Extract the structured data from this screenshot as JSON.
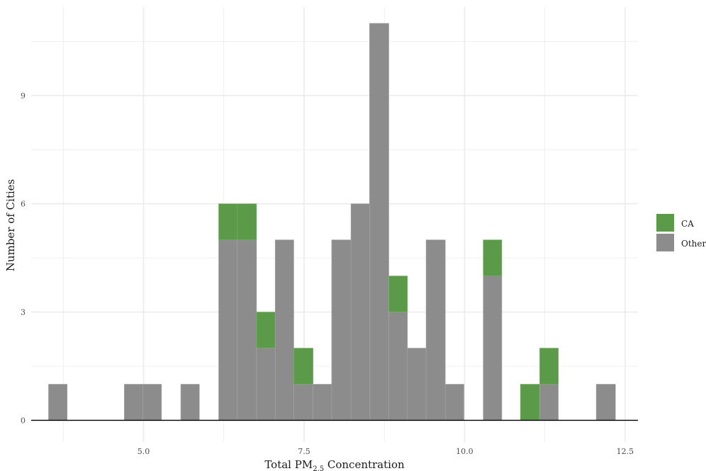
{
  "chart_data": {
    "type": "bar",
    "subtype": "stacked-histogram",
    "title": "",
    "xlabel": {
      "main": "Total PM",
      "sub": "2.5",
      "rest": " Concentration"
    },
    "ylabel": "Number of Cities",
    "xlim": [
      3.25,
      12.7
    ],
    "ylim": [
      -0.6,
      11.45
    ],
    "x_ticks": [
      5.0,
      7.5,
      10.0,
      12.5
    ],
    "x_tick_labels": [
      "5.0",
      "7.5",
      "10.0",
      "12.5"
    ],
    "y_ticks": [
      0,
      3,
      6,
      9
    ],
    "y_tick_labels": [
      "0",
      "3",
      "6",
      "9"
    ],
    "grid": true,
    "legend": {
      "position": "right",
      "items": [
        "CA",
        "Other"
      ]
    },
    "colors": {
      "CA": "#5b9a48",
      "Other": "#8c8c8c",
      "grid": "#ebebeb",
      "baseline": "#000000"
    },
    "bins": [
      {
        "x0": 3.52,
        "x1": 3.81,
        "Other": 1,
        "CA": 0
      },
      {
        "x0": 4.7,
        "x1": 4.99,
        "Other": 1,
        "CA": 0
      },
      {
        "x0": 4.99,
        "x1": 5.28,
        "Other": 1,
        "CA": 0
      },
      {
        "x0": 5.58,
        "x1": 5.87,
        "Other": 1,
        "CA": 0
      },
      {
        "x0": 6.17,
        "x1": 6.46,
        "Other": 5,
        "CA": 1
      },
      {
        "x0": 6.46,
        "x1": 6.76,
        "Other": 5,
        "CA": 1
      },
      {
        "x0": 6.76,
        "x1": 7.05,
        "Other": 2,
        "CA": 1
      },
      {
        "x0": 7.05,
        "x1": 7.34,
        "Other": 5,
        "CA": 0
      },
      {
        "x0": 7.34,
        "x1": 7.64,
        "Other": 1,
        "CA": 1
      },
      {
        "x0": 7.64,
        "x1": 7.93,
        "Other": 1,
        "CA": 0
      },
      {
        "x0": 7.93,
        "x1": 8.23,
        "Other": 5,
        "CA": 0
      },
      {
        "x0": 8.23,
        "x1": 8.52,
        "Other": 6,
        "CA": 0
      },
      {
        "x0": 8.52,
        "x1": 8.82,
        "Other": 11,
        "CA": 0
      },
      {
        "x0": 8.82,
        "x1": 9.11,
        "Other": 3,
        "CA": 1
      },
      {
        "x0": 9.11,
        "x1": 9.4,
        "Other": 2,
        "CA": 0
      },
      {
        "x0": 9.4,
        "x1": 9.7,
        "Other": 5,
        "CA": 0
      },
      {
        "x0": 9.7,
        "x1": 9.99,
        "Other": 1,
        "CA": 0
      },
      {
        "x0": 10.29,
        "x1": 10.58,
        "Other": 4,
        "CA": 1
      },
      {
        "x0": 10.87,
        "x1": 11.17,
        "Other": 0,
        "CA": 1
      },
      {
        "x0": 11.17,
        "x1": 11.46,
        "Other": 1,
        "CA": 1
      },
      {
        "x0": 12.05,
        "x1": 12.35,
        "Other": 1,
        "CA": 0
      }
    ]
  }
}
